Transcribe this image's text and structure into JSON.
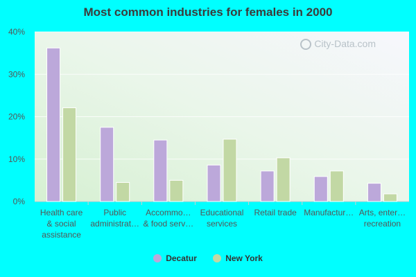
{
  "chart_data": {
    "type": "bar",
    "title": "Most common industries for females in 2000",
    "categories": [
      [
        "Health care",
        "& social",
        "assistance"
      ],
      [
        "Public",
        "administrat…"
      ],
      [
        "Accommo…",
        "& food serv…"
      ],
      [
        "Educational",
        "services"
      ],
      [
        "Retail trade"
      ],
      [
        "Manufactur…"
      ],
      [
        "Arts, enter…",
        "recreation"
      ]
    ],
    "series": [
      {
        "name": "Decatur",
        "color": "#bca8da",
        "values": [
          36.2,
          17.5,
          14.5,
          8.6,
          7.2,
          5.9,
          4.3
        ]
      },
      {
        "name": "New York",
        "color": "#c2d8a4",
        "values": [
          22.1,
          4.5,
          5.0,
          14.7,
          10.3,
          7.2,
          1.8
        ]
      }
    ],
    "ylim": [
      0,
      40
    ],
    "yticks": [
      "0%",
      "10%",
      "20%",
      "30%",
      "40%"
    ],
    "ytick_values": [
      0,
      10,
      20,
      30,
      40
    ],
    "grid": true,
    "legend_position": "bottom",
    "watermark": "City-Data.com"
  }
}
